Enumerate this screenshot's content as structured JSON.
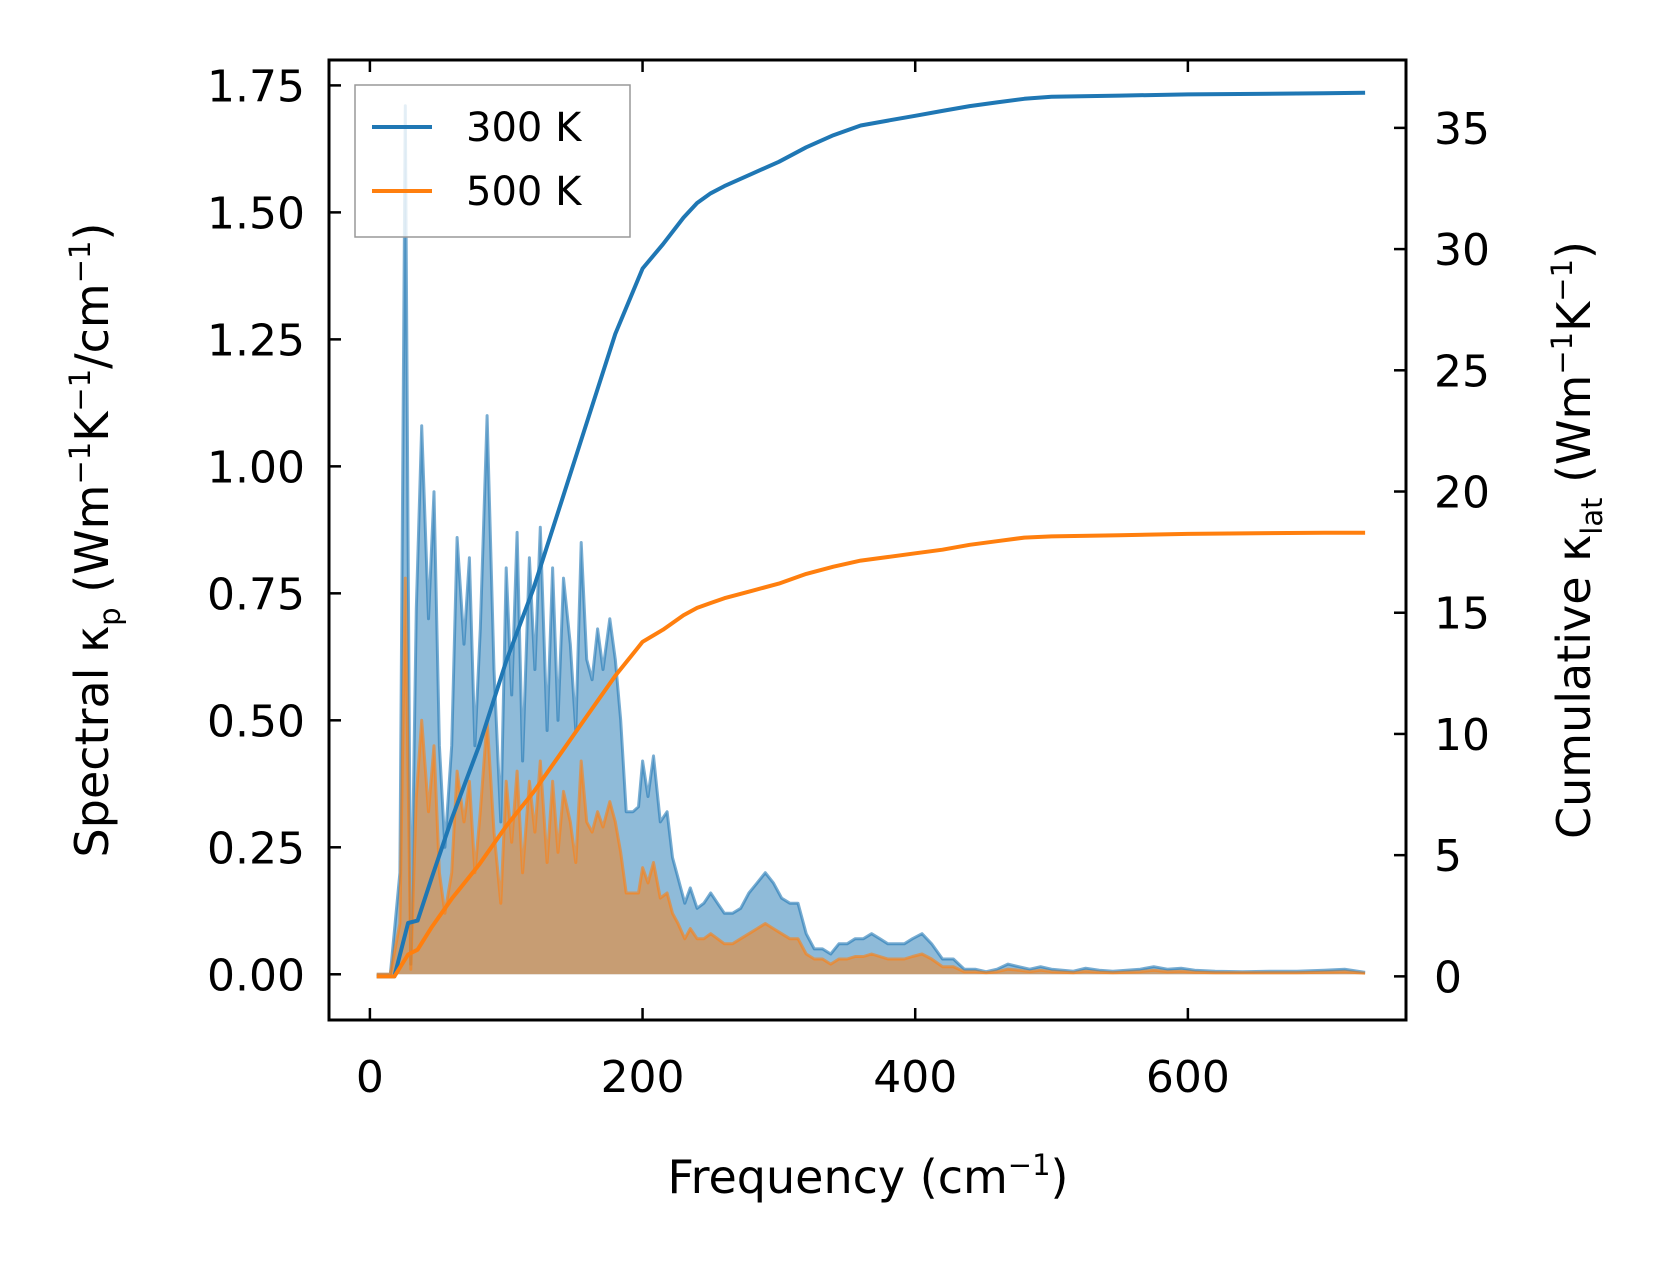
{
  "chart_data": {
    "type": "line",
    "title": "",
    "xlabel": "Frequency (cm⁻¹)",
    "ylabel_left": "Spectral κ_p (Wm⁻¹K⁻¹/cm⁻¹)",
    "ylabel_right": "Cumulative κ_lat (Wm⁻¹K⁻¹)",
    "xlim": [
      -30,
      760
    ],
    "ylim_left": [
      -0.09,
      1.8
    ],
    "ylim_right": [
      -1.8,
      37.8
    ],
    "xticks": [
      "0",
      "200",
      "400",
      "600"
    ],
    "yticks_left": [
      "0.00",
      "0.25",
      "0.50",
      "0.75",
      "1.00",
      "1.25",
      "1.50",
      "1.75"
    ],
    "yticks_right": [
      "0",
      "5",
      "10",
      "15",
      "20",
      "25",
      "30",
      "35"
    ],
    "legend_position": "upper-left",
    "legend": [
      "300 K",
      "500 K"
    ],
    "colors": {
      "300K": "#1f77b4",
      "500K": "#ff7f0e",
      "fill_300K": "#1f77b4",
      "fill_500K": "#ff7f0e"
    },
    "spectral_series": [
      {
        "name": "300 K",
        "x": [
          5,
          15,
          22,
          26,
          30,
          34,
          38,
          43,
          47,
          51,
          55,
          60,
          64,
          69,
          73,
          77,
          81,
          86,
          91,
          96,
          100,
          104,
          108,
          112,
          117,
          121,
          125,
          130,
          134,
          138,
          142,
          147,
          151,
          155,
          159,
          163,
          167,
          171,
          176,
          180,
          184,
          188,
          193,
          197,
          200,
          204,
          208,
          213,
          218,
          222,
          226,
          231,
          235,
          240,
          245,
          250,
          255,
          260,
          266,
          272,
          278,
          284,
          290,
          296,
          302,
          308,
          314,
          320,
          326,
          332,
          338,
          344,
          350,
          356,
          362,
          368,
          374,
          380,
          386,
          392,
          398,
          405,
          412,
          420,
          428,
          436,
          444,
          452,
          460,
          468,
          476,
          484,
          492,
          500,
          508,
          516,
          525,
          535,
          545,
          555,
          565,
          575,
          585,
          595,
          605,
          620,
          640,
          660,
          680,
          700,
          715,
          730
        ],
        "values": [
          0.0,
          0.0,
          0.2,
          1.71,
          0.02,
          0.72,
          1.08,
          0.7,
          0.95,
          0.45,
          0.25,
          0.45,
          0.86,
          0.65,
          0.82,
          0.45,
          0.68,
          1.1,
          0.6,
          0.3,
          0.8,
          0.55,
          0.87,
          0.42,
          0.82,
          0.6,
          0.88,
          0.48,
          0.8,
          0.5,
          0.78,
          0.65,
          0.48,
          0.85,
          0.62,
          0.58,
          0.68,
          0.6,
          0.7,
          0.62,
          0.5,
          0.32,
          0.32,
          0.33,
          0.42,
          0.35,
          0.43,
          0.3,
          0.32,
          0.23,
          0.19,
          0.14,
          0.17,
          0.13,
          0.14,
          0.16,
          0.14,
          0.12,
          0.12,
          0.13,
          0.16,
          0.18,
          0.2,
          0.18,
          0.15,
          0.14,
          0.14,
          0.08,
          0.05,
          0.05,
          0.04,
          0.06,
          0.06,
          0.07,
          0.07,
          0.08,
          0.07,
          0.06,
          0.06,
          0.06,
          0.07,
          0.08,
          0.06,
          0.03,
          0.03,
          0.01,
          0.01,
          0.005,
          0.01,
          0.02,
          0.015,
          0.01,
          0.015,
          0.01,
          0.008,
          0.006,
          0.012,
          0.008,
          0.006,
          0.008,
          0.01,
          0.015,
          0.01,
          0.012,
          0.008,
          0.006,
          0.005,
          0.006,
          0.006,
          0.008,
          0.01,
          0.004
        ]
      },
      {
        "name": "500 K",
        "x": [
          5,
          15,
          22,
          26,
          30,
          34,
          38,
          43,
          47,
          51,
          55,
          60,
          64,
          69,
          73,
          77,
          81,
          86,
          91,
          96,
          100,
          104,
          108,
          112,
          117,
          121,
          125,
          130,
          134,
          138,
          142,
          147,
          151,
          155,
          159,
          163,
          167,
          171,
          176,
          180,
          184,
          188,
          193,
          197,
          200,
          204,
          208,
          213,
          218,
          222,
          226,
          231,
          235,
          240,
          245,
          250,
          255,
          260,
          266,
          272,
          278,
          284,
          290,
          296,
          302,
          308,
          314,
          320,
          326,
          332,
          338,
          344,
          350,
          356,
          362,
          368,
          374,
          380,
          386,
          392,
          398,
          405,
          412,
          420,
          428,
          436,
          444,
          452,
          460,
          468,
          476,
          484,
          492,
          500,
          508,
          516,
          525,
          535,
          545,
          555,
          565,
          575,
          585,
          595,
          605,
          620,
          640,
          660,
          680,
          700,
          715,
          730
        ],
        "values": [
          0.0,
          0.0,
          0.1,
          0.78,
          0.01,
          0.35,
          0.5,
          0.32,
          0.45,
          0.2,
          0.12,
          0.2,
          0.4,
          0.3,
          0.38,
          0.2,
          0.32,
          0.5,
          0.28,
          0.14,
          0.38,
          0.26,
          0.4,
          0.2,
          0.38,
          0.28,
          0.42,
          0.22,
          0.38,
          0.24,
          0.36,
          0.3,
          0.22,
          0.42,
          0.3,
          0.28,
          0.32,
          0.29,
          0.34,
          0.3,
          0.24,
          0.16,
          0.16,
          0.16,
          0.21,
          0.18,
          0.22,
          0.15,
          0.16,
          0.12,
          0.1,
          0.07,
          0.09,
          0.07,
          0.07,
          0.08,
          0.07,
          0.06,
          0.06,
          0.07,
          0.08,
          0.09,
          0.1,
          0.09,
          0.08,
          0.07,
          0.07,
          0.04,
          0.03,
          0.03,
          0.02,
          0.03,
          0.03,
          0.035,
          0.035,
          0.04,
          0.035,
          0.03,
          0.03,
          0.03,
          0.035,
          0.04,
          0.03,
          0.015,
          0.015,
          0.005,
          0.005,
          0.003,
          0.005,
          0.01,
          0.008,
          0.005,
          0.008,
          0.005,
          0.004,
          0.003,
          0.006,
          0.004,
          0.003,
          0.004,
          0.005,
          0.008,
          0.005,
          0.006,
          0.004,
          0.003,
          0.003,
          0.003,
          0.003,
          0.004,
          0.005,
          0.002
        ]
      }
    ],
    "cumulative_series": [
      {
        "name": "300 K",
        "x": [
          5,
          18,
          28,
          35,
          45,
          60,
          80,
          100,
          120,
          140,
          160,
          180,
          200,
          215,
          230,
          240,
          250,
          260,
          280,
          300,
          320,
          340,
          360,
          380,
          400,
          420,
          440,
          460,
          480,
          500,
          550,
          600,
          650,
          700,
          730
        ],
        "values": [
          0,
          0,
          2.2,
          2.3,
          4,
          6.5,
          9.5,
          13,
          16,
          19.5,
          23,
          26.5,
          29.2,
          30.2,
          31.3,
          31.9,
          32.3,
          32.6,
          33.1,
          33.6,
          34.2,
          34.7,
          35.1,
          35.3,
          35.5,
          35.7,
          35.9,
          36.05,
          36.2,
          36.28,
          36.33,
          36.38,
          36.4,
          36.43,
          36.45
        ]
      },
      {
        "name": "500 K",
        "x": [
          5,
          18,
          28,
          35,
          45,
          60,
          80,
          100,
          120,
          140,
          160,
          180,
          200,
          215,
          230,
          240,
          250,
          260,
          280,
          300,
          320,
          340,
          360,
          380,
          400,
          420,
          440,
          460,
          480,
          500,
          550,
          600,
          650,
          700,
          730
        ],
        "values": [
          0,
          0,
          0.9,
          1.1,
          2,
          3.2,
          4.6,
          6.2,
          7.6,
          9.2,
          10.8,
          12.4,
          13.8,
          14.3,
          14.9,
          15.2,
          15.4,
          15.6,
          15.9,
          16.2,
          16.6,
          16.9,
          17.15,
          17.3,
          17.45,
          17.6,
          17.8,
          17.95,
          18.1,
          18.15,
          18.2,
          18.25,
          18.28,
          18.3,
          18.3
        ]
      }
    ]
  }
}
